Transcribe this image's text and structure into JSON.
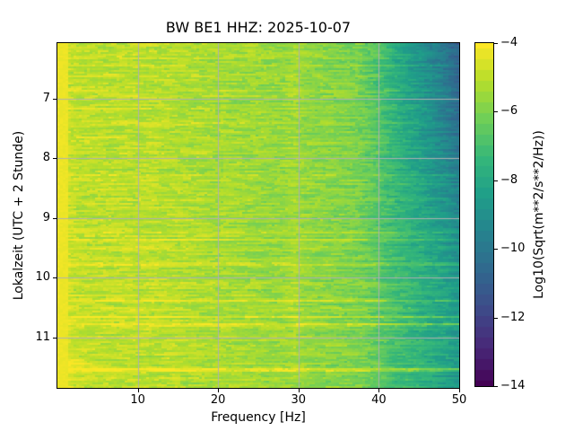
{
  "figure": {
    "background": "#ffffff"
  },
  "chart_data": {
    "type": "heatmap",
    "title": "BW BE1  HHZ: 2025-10-07",
    "xlabel": "Frequency [Hz]",
    "ylabel": "Lokalzeit (UTC + 2 Stunde)",
    "colorbar_label": "Log10(Sqrt(m**2/s**2/Hz))",
    "colormap": "viridis",
    "grid": true,
    "grid_color": "#b0b0b0",
    "x_range": [
      0,
      50
    ],
    "y_range": [
      6.07,
      11.845
    ],
    "y_axis_direction": "time increases downward",
    "x_ticks": [
      10,
      20,
      30,
      40,
      50
    ],
    "y_ticks": [
      7,
      8,
      9,
      10,
      11
    ],
    "colorbar": {
      "value_top": -4,
      "value_bottom": -14,
      "ticks": [
        -4,
        -6,
        -8,
        -10,
        -12,
        -14
      ],
      "levels": 32
    },
    "field": {
      "description": "Seismic spectrogram: loud low frequencies, quieter high frequencies, gray gridlines on top, horizontal broadband event streaks.",
      "grid_size": {
        "cols": 150,
        "rows": 192
      },
      "freq_profile": {
        "f": [
          0,
          0.8,
          1.6,
          3,
          8,
          14,
          18,
          22,
          26,
          28,
          29.5,
          31,
          33,
          36,
          38,
          40,
          42,
          44,
          46,
          48,
          50
        ],
        "level": [
          -4.15,
          -4.2,
          -4.85,
          -5.0,
          -5.0,
          -5.1,
          -5.25,
          -5.4,
          -5.55,
          -5.6,
          -5.3,
          -5.65,
          -5.75,
          -5.9,
          -6.1,
          -6.55,
          -7.0,
          -7.4,
          -7.8,
          -8.2,
          -8.8
        ]
      },
      "low_freq_bright_stripe_max_hz": 1.2,
      "morning_hf_attenuation": {
        "f_start": 37,
        "max_extra": -2.3,
        "exponent": 1.3,
        "fade_end_hour": 10
      },
      "events": [
        {
          "t": 6.45,
          "a": 0.45,
          "w": 0.012
        },
        {
          "t": 6.87,
          "a": 0.4,
          "w": 0.01
        },
        {
          "t": 7.18,
          "a": 0.3,
          "w": 0.01
        },
        {
          "t": 7.42,
          "a": 0.4,
          "w": 0.012
        },
        {
          "t": 7.75,
          "a": 0.3,
          "w": 0.01
        },
        {
          "t": 8.28,
          "a": 0.45,
          "w": 0.012
        },
        {
          "t": 8.62,
          "a": 0.3,
          "w": 0.01
        },
        {
          "t": 8.87,
          "a": 0.4,
          "w": 0.01
        },
        {
          "t": 9.23,
          "a": 0.85,
          "w": 0.014
        },
        {
          "t": 9.36,
          "a": 0.6,
          "w": 0.01
        },
        {
          "t": 9.62,
          "a": 0.35,
          "w": 0.01
        },
        {
          "t": 9.77,
          "a": 1.0,
          "w": 0.018
        },
        {
          "t": 10.1,
          "a": 0.5,
          "w": 0.01
        },
        {
          "t": 10.38,
          "a": 0.8,
          "w": 0.013
        },
        {
          "t": 10.52,
          "a": 0.75,
          "w": 0.012
        },
        {
          "t": 10.65,
          "a": 1.1,
          "w": 0.014
        },
        {
          "t": 10.78,
          "a": 1.2,
          "w": 0.022
        },
        {
          "t": 11.1,
          "a": 0.45,
          "w": 0.01
        },
        {
          "t": 11.3,
          "a": 0.6,
          "w": 0.012
        },
        {
          "t": 11.45,
          "a": 0.9,
          "w": 0.09,
          "fmax": 5
        },
        {
          "t": 11.54,
          "a": 1.3,
          "w": 0.03
        },
        {
          "t": 11.7,
          "a": 0.7,
          "w": 0.012
        }
      ],
      "noise": {
        "dash_prob": 0.32,
        "dash_amp": 1.05,
        "row_amp": 0.45,
        "cell_amp": 0.3,
        "seed": 42
      }
    }
  }
}
